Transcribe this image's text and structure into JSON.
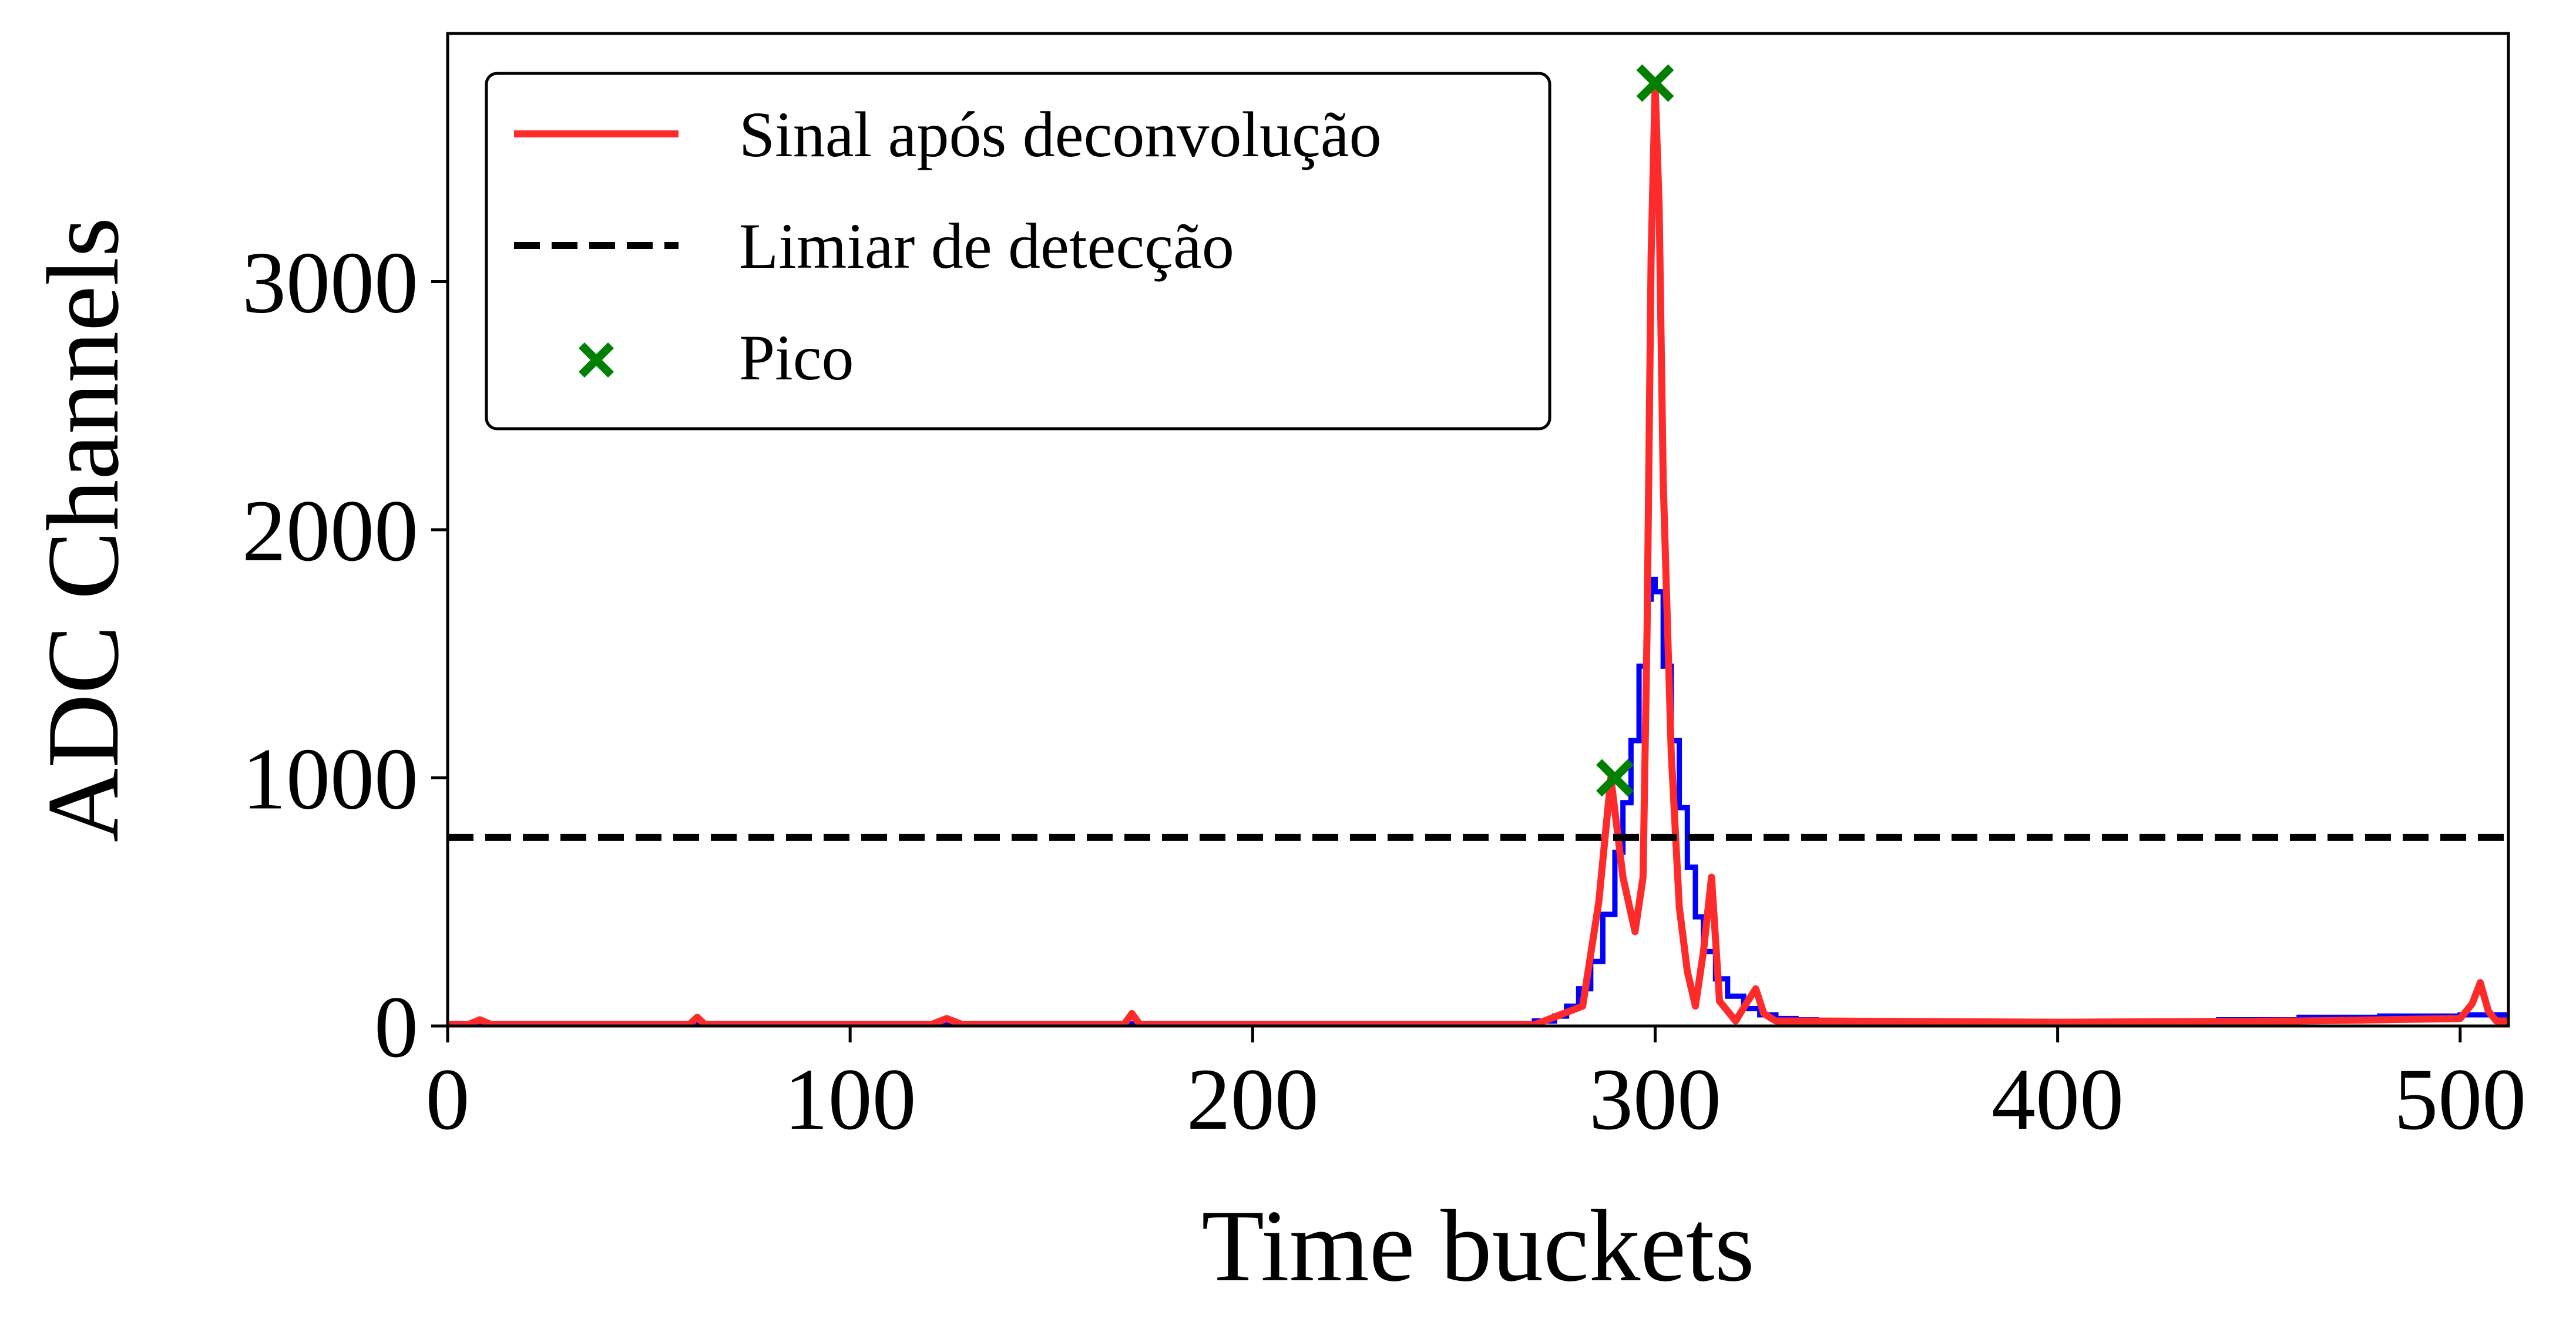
{
  "chart_data": {
    "type": "line",
    "xlabel": "Time buckets",
    "ylabel": "ADC Channels",
    "xlim": [
      0,
      512
    ],
    "ylim": [
      0,
      4000
    ],
    "xticks": [
      0,
      100,
      200,
      300,
      400,
      500
    ],
    "yticks": [
      0,
      1000,
      2000,
      3000
    ],
    "grid": false,
    "legend": {
      "placement": "upper-left",
      "entries": [
        {
          "label": "Sinal após deconvolução",
          "style": "solid-line",
          "color": "#ff2a2a"
        },
        {
          "label": "Limiar de detecção",
          "style": "dashed-line",
          "color": "#000000"
        },
        {
          "label": "Pico",
          "style": "x-marker",
          "color": "#008000"
        }
      ]
    },
    "series": [
      {
        "type": "step",
        "color": "#0000ff",
        "x": [
          0,
          50,
          100,
          150,
          200,
          250,
          270,
          275,
          278,
          281,
          284,
          287,
          290,
          292,
          294,
          296,
          298,
          299,
          300,
          302,
          304,
          306,
          308,
          310,
          312,
          315,
          318,
          322,
          326,
          330,
          335,
          340,
          350,
          400,
          440,
          460,
          480,
          500,
          510,
          512
        ],
        "y": [
          10,
          10,
          10,
          10,
          10,
          10,
          20,
          40,
          80,
          150,
          260,
          450,
          700,
          900,
          1150,
          1450,
          1720,
          1800,
          1750,
          1450,
          1150,
          880,
          640,
          440,
          300,
          190,
          120,
          70,
          45,
          30,
          25,
          20,
          18,
          15,
          25,
          35,
          40,
          45,
          45,
          45
        ]
      },
      {
        "type": "line",
        "color": "#ff2a2a",
        "x": [
          0,
          5,
          8,
          11,
          60,
          62,
          64,
          120,
          124,
          128,
          168,
          170,
          172,
          240,
          270,
          282,
          286,
          289,
          292,
          295,
          297,
          298,
          299,
          300,
          301,
          302,
          304,
          306,
          308,
          310,
          312,
          314,
          316,
          320,
          323,
          325,
          327,
          330,
          340,
          400,
          460,
          500,
          503,
          505,
          507,
          509,
          512
        ],
        "y": [
          5,
          5,
          25,
          5,
          5,
          35,
          5,
          5,
          30,
          5,
          5,
          50,
          5,
          5,
          5,
          80,
          500,
          1000,
          600,
          380,
          600,
          1600,
          3100,
          3790,
          3300,
          2200,
          1100,
          480,
          220,
          80,
          300,
          600,
          100,
          20,
          100,
          150,
          50,
          20,
          20,
          15,
          20,
          30,
          90,
          175,
          60,
          20,
          20
        ]
      },
      {
        "type": "hline",
        "color": "#000000",
        "y": 760
      },
      {
        "type": "scatter",
        "color": "#008000",
        "marker": "x",
        "x": [
          290,
          300
        ],
        "y": [
          1000,
          3800
        ]
      }
    ]
  }
}
